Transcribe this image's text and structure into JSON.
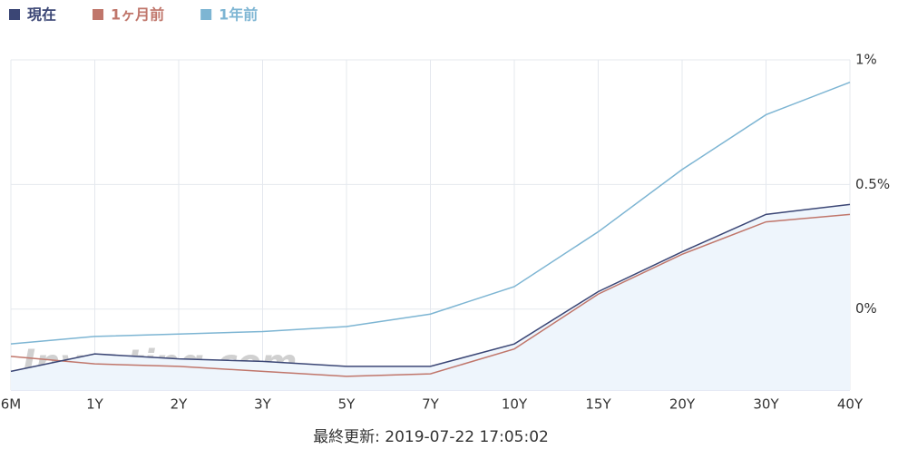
{
  "chart_data": {
    "type": "line",
    "categories": [
      "6M",
      "1Y",
      "2Y",
      "3Y",
      "5Y",
      "7Y",
      "10Y",
      "15Y",
      "20Y",
      "30Y",
      "40Y"
    ],
    "series": [
      {
        "name": "現在",
        "color": "#3b4675",
        "area": true,
        "values": [
          -0.25,
          -0.18,
          -0.2,
          -0.21,
          -0.23,
          -0.23,
          -0.14,
          0.07,
          0.23,
          0.38,
          0.42
        ]
      },
      {
        "name": "1ヶ月前",
        "color": "#c0766b",
        "values": [
          -0.19,
          -0.22,
          -0.23,
          -0.25,
          -0.27,
          -0.26,
          -0.16,
          0.06,
          0.22,
          0.35,
          0.38
        ]
      },
      {
        "name": "1年前",
        "color": "#7db5d3",
        "values": [
          -0.14,
          -0.11,
          -0.1,
          -0.09,
          -0.07,
          -0.02,
          0.09,
          0.31,
          0.56,
          0.78,
          0.91
        ]
      }
    ],
    "ylim": [
      -0.325,
      1
    ],
    "yticks": [
      {
        "value": 1,
        "label": "1%"
      },
      {
        "value": 0.5,
        "label": "0.5%"
      },
      {
        "value": 0,
        "label": "0%"
      }
    ],
    "grid": true,
    "watermark": "Investing.com",
    "footer": "最終更新: 2019-07-22 17:05:02"
  }
}
